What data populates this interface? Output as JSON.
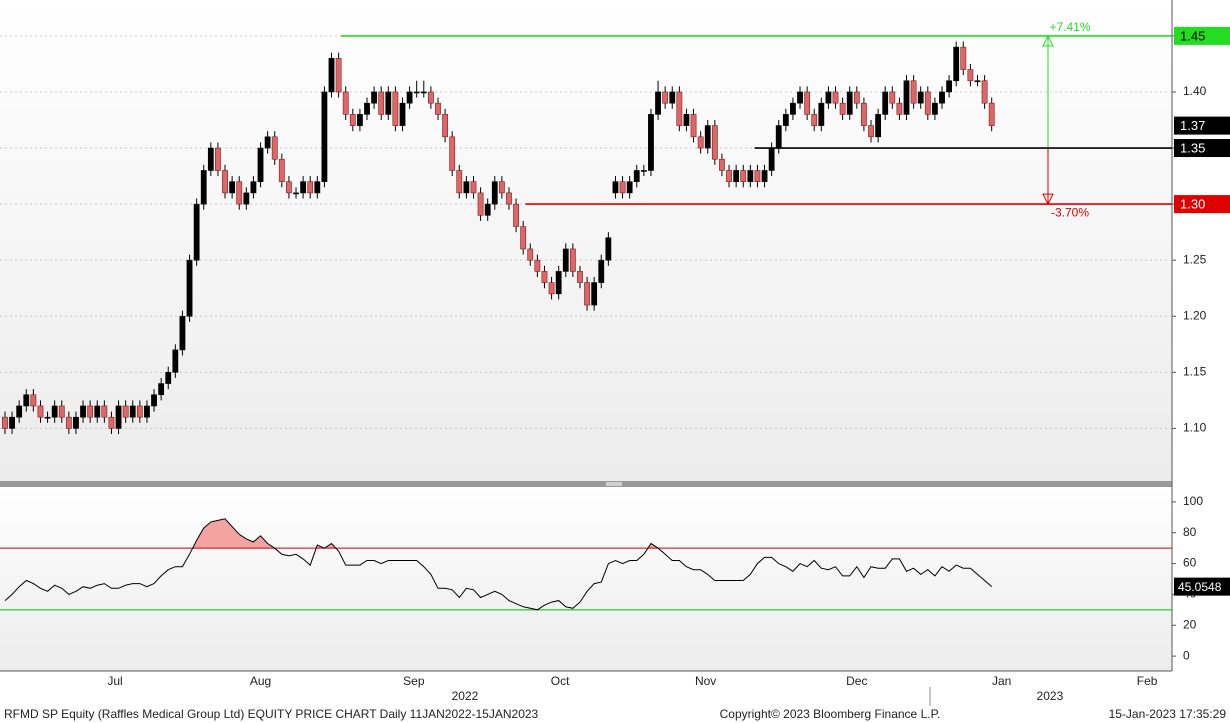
{
  "chart_data": [
    {
      "type": "candlestick",
      "xlim": [
        -0.7,
        164.4
      ],
      "xticks": [
        {
          "value": 15.5,
          "label": "Jul"
        },
        {
          "value": 36,
          "label": "Aug"
        },
        {
          "value": 57.6,
          "label": "Sep"
        },
        {
          "value": 78.2,
          "label": "Oct"
        },
        {
          "value": 98.7,
          "label": "Nov"
        },
        {
          "value": 120,
          "label": "Dec"
        },
        {
          "value": 140.4,
          "label": "Jan"
        },
        {
          "value": 160.9,
          "label": "Feb"
        }
      ],
      "year_ticks": [
        {
          "value": 64.8,
          "label": "2022"
        },
        {
          "value": 147.2,
          "label": "2023"
        }
      ],
      "ylim": [
        1.054,
        1.482
      ],
      "yticks": [
        {
          "value": 1.1,
          "label": "1.10"
        },
        {
          "value": 1.15,
          "label": "1.15"
        },
        {
          "value": 1.2,
          "label": "1.20"
        },
        {
          "value": 1.25,
          "label": "1.25"
        },
        {
          "value": 1.3,
          "label": "1.30"
        },
        {
          "value": 1.35,
          "label": "1.35"
        },
        {
          "value": 1.4,
          "label": "1.40"
        },
        {
          "value": 1.45,
          "label": "1.45"
        }
      ],
      "grid": true,
      "up_color": "#000000",
      "down_color": "#e06666",
      "open": [
        1.11,
        1.1,
        1.11,
        1.12,
        1.13,
        1.12,
        1.11,
        1.11,
        1.12,
        1.11,
        1.1,
        1.11,
        1.12,
        1.11,
        1.12,
        1.11,
        1.1,
        1.12,
        1.11,
        1.12,
        1.11,
        1.12,
        1.13,
        1.14,
        1.15,
        1.17,
        1.2,
        1.25,
        1.3,
        1.33,
        1.35,
        1.33,
        1.31,
        1.32,
        1.3,
        1.31,
        1.32,
        1.35,
        1.36,
        1.34,
        1.32,
        1.31,
        1.31,
        1.32,
        1.31,
        1.32,
        1.4,
        1.43,
        1.4,
        1.38,
        1.37,
        1.38,
        1.39,
        1.4,
        1.38,
        1.4,
        1.37,
        1.39,
        1.4,
        1.4,
        1.4,
        1.39,
        1.38,
        1.36,
        1.33,
        1.31,
        1.32,
        1.31,
        1.29,
        1.3,
        1.32,
        1.31,
        1.3,
        1.28,
        1.26,
        1.25,
        1.24,
        1.23,
        1.22,
        1.24,
        1.26,
        1.24,
        1.23,
        1.21,
        1.23,
        1.25,
        1.31,
        1.32,
        1.31,
        1.32,
        1.33,
        1.33,
        1.38,
        1.4,
        1.39,
        1.4,
        1.37,
        1.38,
        1.36,
        1.35,
        1.37,
        1.34,
        1.33,
        1.32,
        1.33,
        1.32,
        1.33,
        1.32,
        1.33,
        1.35,
        1.37,
        1.38,
        1.39,
        1.4,
        1.38,
        1.37,
        1.39,
        1.4,
        1.39,
        1.38,
        1.4,
        1.39,
        1.37,
        1.36,
        1.38,
        1.4,
        1.39,
        1.38,
        1.41,
        1.39,
        1.4,
        1.38,
        1.39,
        1.4,
        1.41,
        1.44,
        1.42,
        1.41,
        1.41,
        1.39
      ],
      "high": [
        1.115,
        1.115,
        1.125,
        1.135,
        1.135,
        1.125,
        1.115,
        1.125,
        1.125,
        1.115,
        1.115,
        1.125,
        1.125,
        1.125,
        1.125,
        1.115,
        1.125,
        1.125,
        1.125,
        1.125,
        1.125,
        1.135,
        1.145,
        1.155,
        1.175,
        1.205,
        1.255,
        1.305,
        1.335,
        1.355,
        1.355,
        1.335,
        1.325,
        1.325,
        1.315,
        1.325,
        1.355,
        1.365,
        1.365,
        1.345,
        1.325,
        1.315,
        1.325,
        1.325,
        1.325,
        1.405,
        1.435,
        1.435,
        1.405,
        1.385,
        1.385,
        1.395,
        1.405,
        1.405,
        1.405,
        1.405,
        1.395,
        1.405,
        1.41,
        1.41,
        1.405,
        1.395,
        1.385,
        1.365,
        1.335,
        1.325,
        1.325,
        1.315,
        1.305,
        1.325,
        1.325,
        1.315,
        1.305,
        1.285,
        1.265,
        1.255,
        1.245,
        1.235,
        1.245,
        1.265,
        1.265,
        1.245,
        1.235,
        1.235,
        1.255,
        1.275,
        1.325,
        1.325,
        1.325,
        1.335,
        1.335,
        1.385,
        1.41,
        1.405,
        1.405,
        1.405,
        1.385,
        1.385,
        1.365,
        1.375,
        1.375,
        1.345,
        1.335,
        1.335,
        1.335,
        1.335,
        1.335,
        1.335,
        1.355,
        1.375,
        1.385,
        1.395,
        1.405,
        1.405,
        1.385,
        1.395,
        1.405,
        1.405,
        1.395,
        1.405,
        1.405,
        1.395,
        1.375,
        1.385,
        1.405,
        1.405,
        1.395,
        1.415,
        1.415,
        1.405,
        1.405,
        1.395,
        1.405,
        1.415,
        1.445,
        1.445,
        1.425,
        1.415,
        1.415,
        1.395
      ],
      "low": [
        1.095,
        1.095,
        1.105,
        1.115,
        1.115,
        1.105,
        1.105,
        1.105,
        1.105,
        1.095,
        1.095,
        1.105,
        1.105,
        1.105,
        1.105,
        1.095,
        1.095,
        1.105,
        1.105,
        1.105,
        1.105,
        1.115,
        1.125,
        1.135,
        1.145,
        1.165,
        1.195,
        1.245,
        1.295,
        1.325,
        1.325,
        1.305,
        1.305,
        1.295,
        1.295,
        1.305,
        1.315,
        1.345,
        1.335,
        1.315,
        1.305,
        1.305,
        1.305,
        1.305,
        1.305,
        1.315,
        1.395,
        1.395,
        1.375,
        1.365,
        1.365,
        1.375,
        1.385,
        1.375,
        1.375,
        1.365,
        1.365,
        1.385,
        1.395,
        1.395,
        1.385,
        1.375,
        1.355,
        1.325,
        1.305,
        1.305,
        1.305,
        1.285,
        1.285,
        1.295,
        1.305,
        1.295,
        1.275,
        1.255,
        1.245,
        1.235,
        1.225,
        1.215,
        1.215,
        1.235,
        1.235,
        1.225,
        1.205,
        1.205,
        1.225,
        1.245,
        1.305,
        1.305,
        1.305,
        1.315,
        1.325,
        1.325,
        1.375,
        1.385,
        1.385,
        1.365,
        1.365,
        1.355,
        1.345,
        1.345,
        1.335,
        1.325,
        1.315,
        1.315,
        1.315,
        1.315,
        1.315,
        1.315,
        1.325,
        1.345,
        1.365,
        1.375,
        1.385,
        1.375,
        1.365,
        1.365,
        1.385,
        1.385,
        1.375,
        1.375,
        1.385,
        1.365,
        1.355,
        1.355,
        1.375,
        1.385,
        1.375,
        1.375,
        1.385,
        1.385,
        1.375,
        1.375,
        1.385,
        1.395,
        1.405,
        1.415,
        1.405,
        1.405,
        1.385,
        1.365
      ],
      "close": [
        1.1,
        1.11,
        1.12,
        1.13,
        1.12,
        1.11,
        1.11,
        1.12,
        1.11,
        1.1,
        1.11,
        1.12,
        1.11,
        1.12,
        1.11,
        1.1,
        1.12,
        1.11,
        1.12,
        1.11,
        1.12,
        1.13,
        1.14,
        1.15,
        1.17,
        1.2,
        1.25,
        1.3,
        1.33,
        1.35,
        1.33,
        1.31,
        1.32,
        1.3,
        1.31,
        1.32,
        1.35,
        1.36,
        1.34,
        1.32,
        1.31,
        1.31,
        1.32,
        1.31,
        1.32,
        1.4,
        1.43,
        1.4,
        1.38,
        1.37,
        1.38,
        1.39,
        1.4,
        1.38,
        1.4,
        1.37,
        1.39,
        1.4,
        1.4,
        1.4,
        1.39,
        1.38,
        1.36,
        1.33,
        1.31,
        1.32,
        1.31,
        1.29,
        1.3,
        1.32,
        1.31,
        1.3,
        1.28,
        1.26,
        1.25,
        1.24,
        1.23,
        1.22,
        1.24,
        1.26,
        1.24,
        1.23,
        1.21,
        1.23,
        1.25,
        1.27,
        1.32,
        1.31,
        1.32,
        1.33,
        1.33,
        1.38,
        1.4,
        1.39,
        1.4,
        1.37,
        1.38,
        1.36,
        1.35,
        1.37,
        1.34,
        1.33,
        1.32,
        1.33,
        1.32,
        1.33,
        1.32,
        1.33,
        1.35,
        1.37,
        1.38,
        1.39,
        1.4,
        1.38,
        1.37,
        1.39,
        1.4,
        1.39,
        1.38,
        1.4,
        1.39,
        1.37,
        1.36,
        1.38,
        1.4,
        1.39,
        1.38,
        1.41,
        1.39,
        1.4,
        1.38,
        1.39,
        1.4,
        1.41,
        1.44,
        1.42,
        1.41,
        1.41,
        1.39,
        1.37
      ],
      "last_price": 1.37,
      "levels": [
        {
          "value": 1.45,
          "label": "1.45",
          "color": "#22dd22",
          "x_start": 47.3,
          "annotation": "+7.41%",
          "text_color": "#000000"
        },
        {
          "value": 1.35,
          "label": "1.35",
          "color": "#000000",
          "x_start": 105.6,
          "text_color": "#ffffff"
        },
        {
          "value": 1.3,
          "label": "1.30",
          "color": "#e00000",
          "x_start": 73.3,
          "annotation": "-3.70%",
          "text_color": "#ffffff"
        }
      ]
    },
    {
      "type": "line",
      "xlim": [
        -0.7,
        164.4
      ],
      "ylim": [
        -9,
        109
      ],
      "yticks": [
        0,
        20,
        40,
        60,
        80,
        100
      ],
      "color": "#000000",
      "fill_above": {
        "value": 70,
        "color": "#f4a3a3"
      },
      "hlines": [
        {
          "value": 70,
          "color": "#cc0000"
        },
        {
          "value": 30,
          "color": "#00bb00"
        }
      ],
      "values": [
        36,
        40,
        45,
        49,
        47,
        44,
        42,
        46,
        44,
        40,
        42,
        45,
        44,
        46,
        47,
        44,
        44,
        46,
        47,
        47,
        45,
        47,
        52,
        56,
        58,
        58,
        66,
        75,
        83,
        87,
        88,
        89,
        84,
        79,
        76,
        74,
        78,
        73,
        70,
        66,
        65,
        66,
        63,
        59,
        72,
        70,
        73,
        68,
        59,
        59,
        59,
        62,
        62,
        60,
        62,
        62,
        62,
        62,
        62,
        58,
        53,
        44,
        44,
        43,
        38,
        44,
        43,
        38,
        40,
        42,
        40,
        36,
        34,
        32,
        31,
        30,
        33,
        35,
        36,
        32,
        31,
        35,
        42,
        47,
        48,
        60,
        62,
        60,
        62,
        62,
        66,
        73,
        70,
        66,
        62,
        62,
        58,
        56,
        56,
        53,
        49,
        49,
        49,
        49,
        49,
        53,
        60,
        64,
        64,
        60,
        58,
        55,
        60,
        58,
        62,
        57,
        56,
        58,
        52,
        52,
        58,
        51,
        58,
        57,
        57,
        63,
        63,
        55,
        57,
        53,
        56,
        52,
        58,
        55,
        59,
        57,
        57,
        53,
        49,
        45.0548
      ]
    }
  ],
  "footer": {
    "title": "RFMD SP Equity (Raffles Medical Group Ltd) EQUITY PRICE CHART  Daily 11JAN2022-15JAN2023",
    "copyright": "Copyright© 2023 Bloomberg Finance L.P.",
    "timestamp": "15-Jan-2023 17:35:29"
  }
}
